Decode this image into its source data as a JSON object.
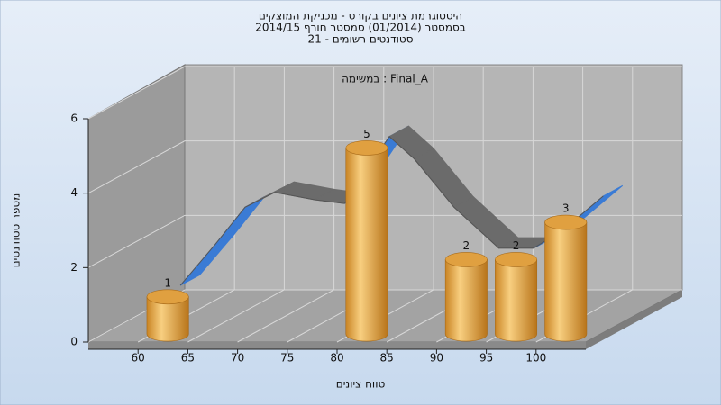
{
  "chart_data": {
    "type": "histogram",
    "title_lines": [
      "היסטוגרמת ציונים בקורס - מכניקת המוצקים",
      "בסמסטר (01/2014) סמסטר חורף 2014/15",
      "סטודנטים רשומים - 21"
    ],
    "annotation": "במשימה : Final_A",
    "x_label": "טווח ציונים",
    "y_label": "מספר סטודנטים",
    "bins": [
      55,
      60,
      65,
      70,
      75,
      80,
      85,
      90,
      95,
      100,
      105
    ],
    "values": [
      0,
      1,
      0,
      0,
      0,
      5,
      0,
      2,
      2,
      3
    ],
    "color": "#e0a040",
    "xlim": [
      55,
      105
    ],
    "xticks": [
      60,
      65,
      70,
      75,
      80,
      85,
      90,
      95,
      100
    ],
    "ylim": [
      0,
      6
    ],
    "yticks": [
      0,
      2,
      4,
      6
    ],
    "grid": true,
    "curve": {
      "x": [
        56.5,
        60,
        63,
        66,
        70,
        73,
        75,
        77.5,
        80,
        84,
        88.5,
        92,
        95,
        99
      ],
      "values": [
        0.4,
        1.5,
        2.5,
        2.9,
        2.7,
        2.6,
        3.4,
        4.4,
        3.8,
        2.5,
        1.4,
        1.4,
        1.9,
        2.8
      ],
      "color": "#6b6b6b",
      "underside_color": "#3a7bd5"
    }
  }
}
